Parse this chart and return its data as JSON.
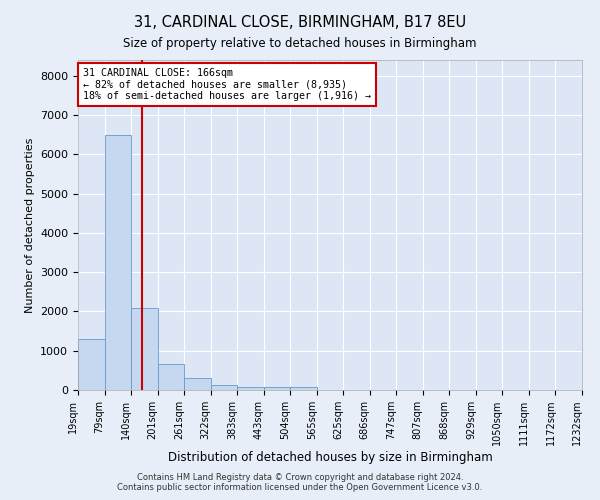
{
  "title": "31, CARDINAL CLOSE, BIRMINGHAM, B17 8EU",
  "subtitle": "Size of property relative to detached houses in Birmingham",
  "xlabel": "Distribution of detached houses by size in Birmingham",
  "ylabel": "Number of detached properties",
  "bar_color": "#c5d8f0",
  "bar_edge_color": "#6699cc",
  "fig_bg_color": "#e8eef8",
  "axes_bg_color": "#dce6f5",
  "grid_color": "#ffffff",
  "annotation_line_color": "#cc0000",
  "annotation_box_edge_color": "#cc0000",
  "annotation_text_line1": "31 CARDINAL CLOSE: 166sqm",
  "annotation_text_line2": "← 82% of detached houses are smaller (8,935)",
  "annotation_text_line3": "18% of semi-detached houses are larger (1,916) →",
  "property_size": 166,
  "footer_line1": "Contains HM Land Registry data © Crown copyright and database right 2024.",
  "footer_line2": "Contains public sector information licensed under the Open Government Licence v3.0.",
  "bin_edges": [
    19,
    79,
    140,
    201,
    261,
    322,
    383,
    443,
    504,
    565,
    625,
    686,
    747,
    807,
    868,
    929,
    1050,
    1111,
    1172,
    1232
  ],
  "bar_heights": [
    1300,
    6500,
    2100,
    650,
    300,
    120,
    80,
    65,
    65,
    0,
    0,
    0,
    0,
    0,
    0,
    0,
    0,
    0,
    0
  ],
  "ylim_max": 8400,
  "yticks": [
    0,
    1000,
    2000,
    3000,
    4000,
    5000,
    6000,
    7000,
    8000
  ]
}
